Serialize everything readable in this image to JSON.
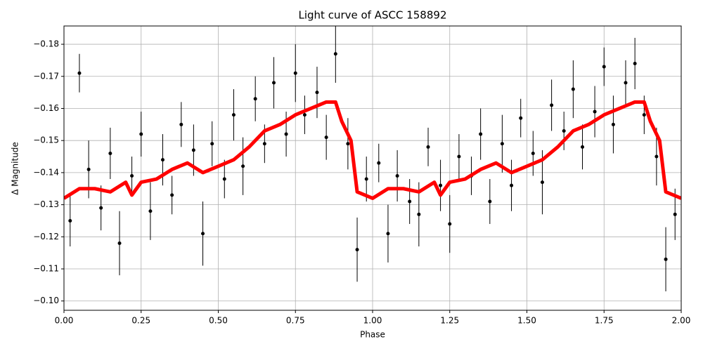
{
  "chart_data": {
    "type": "scatter",
    "title": "Light curve of ASCC 158892",
    "xlabel": "Phase",
    "ylabel": "Δ Magnitude",
    "xlim": [
      0,
      2
    ],
    "ylim": [
      -0.0971,
      -0.1857
    ],
    "xticks": [
      {
        "value": 0,
        "label": "0.00"
      },
      {
        "value": 0.25,
        "label": "0.25"
      },
      {
        "value": 0.5,
        "label": "0.50"
      },
      {
        "value": 0.75,
        "label": "0.75"
      },
      {
        "value": 1,
        "label": "1.00"
      },
      {
        "value": 1.25,
        "label": "1.25"
      },
      {
        "value": 1.5,
        "label": "1.50"
      },
      {
        "value": 1.75,
        "label": "1.75"
      },
      {
        "value": 2,
        "label": "2.00"
      }
    ],
    "yticks": [
      {
        "value": -0.18,
        "label": "−0.18"
      },
      {
        "value": -0.17,
        "label": "−0.17"
      },
      {
        "value": -0.16,
        "label": "−0.16"
      },
      {
        "value": -0.15,
        "label": "−0.15"
      },
      {
        "value": -0.14,
        "label": "−0.14"
      },
      {
        "value": -0.13,
        "label": "−0.13"
      },
      {
        "value": -0.12,
        "label": "−0.12"
      },
      {
        "value": -0.11,
        "label": "−0.11"
      },
      {
        "value": -0.1,
        "label": "−0.10"
      }
    ],
    "grid": true,
    "series": [
      {
        "kind": "errorbar",
        "color": "#000000",
        "x": [
          0.02,
          0.05,
          0.08,
          0.12,
          0.15,
          0.18,
          0.22,
          0.25,
          0.28,
          0.32,
          0.35,
          0.38,
          0.42,
          0.45,
          0.48,
          0.52,
          0.55,
          0.58,
          0.62,
          0.65,
          0.68,
          0.72,
          0.75,
          0.78,
          0.82,
          0.85,
          0.88,
          0.92,
          0.95,
          0.98,
          1.02,
          1.05,
          1.08,
          1.12,
          1.15,
          1.18,
          1.22,
          1.25,
          1.28,
          1.32,
          1.35,
          1.38,
          1.42,
          1.45,
          1.48,
          1.52,
          1.55,
          1.58,
          1.62,
          1.65,
          1.68,
          1.72,
          1.75,
          1.78,
          1.82,
          1.85,
          1.88,
          1.92,
          1.95,
          1.98
        ],
        "values": [
          -0.125,
          -0.171,
          -0.141,
          -0.129,
          -0.146,
          -0.118,
          -0.139,
          -0.152,
          -0.128,
          -0.144,
          -0.133,
          -0.155,
          -0.147,
          -0.121,
          -0.149,
          -0.138,
          -0.158,
          -0.142,
          -0.163,
          -0.149,
          -0.168,
          -0.152,
          -0.171,
          -0.158,
          -0.165,
          -0.151,
          -0.177,
          -0.149,
          -0.116,
          -0.138,
          -0.143,
          -0.121,
          -0.139,
          -0.131,
          -0.127,
          -0.148,
          -0.136,
          -0.124,
          -0.145,
          -0.139,
          -0.152,
          -0.131,
          -0.149,
          -0.136,
          -0.157,
          -0.146,
          -0.137,
          -0.161,
          -0.153,
          -0.166,
          -0.148,
          -0.159,
          -0.173,
          -0.155,
          -0.168,
          -0.174,
          -0.158,
          -0.145,
          -0.113,
          -0.127
        ],
        "errors": [
          0.008,
          0.006,
          0.009,
          0.007,
          0.008,
          0.01,
          0.006,
          0.007,
          0.009,
          0.008,
          0.006,
          0.007,
          0.008,
          0.01,
          0.007,
          0.006,
          0.008,
          0.009,
          0.007,
          0.006,
          0.008,
          0.007,
          0.009,
          0.006,
          0.008,
          0.007,
          0.009,
          0.008,
          0.01,
          0.007,
          0.006,
          0.009,
          0.008,
          0.007,
          0.01,
          0.006,
          0.008,
          0.009,
          0.007,
          0.006,
          0.008,
          0.007,
          0.009,
          0.008,
          0.006,
          0.007,
          0.01,
          0.008,
          0.006,
          0.009,
          0.007,
          0.008,
          0.006,
          0.009,
          0.007,
          0.008,
          0.006,
          0.009,
          0.01,
          0.008
        ]
      },
      {
        "kind": "line",
        "color": "#ff0000",
        "x": [
          0,
          0.05,
          0.1,
          0.15,
          0.2,
          0.22,
          0.25,
          0.3,
          0.35,
          0.4,
          0.45,
          0.5,
          0.55,
          0.6,
          0.65,
          0.7,
          0.75,
          0.8,
          0.85,
          0.88,
          0.9,
          0.93,
          0.95,
          1,
          1.05,
          1.1,
          1.15,
          1.2,
          1.22,
          1.25,
          1.3,
          1.35,
          1.4,
          1.45,
          1.5,
          1.55,
          1.6,
          1.65,
          1.7,
          1.75,
          1.8,
          1.85,
          1.88,
          1.9,
          1.93,
          1.95,
          2
        ],
        "values": [
          -0.132,
          -0.135,
          -0.135,
          -0.134,
          -0.137,
          -0.133,
          -0.137,
          -0.138,
          -0.141,
          -0.143,
          -0.14,
          -0.142,
          -0.144,
          -0.148,
          -0.153,
          -0.155,
          -0.158,
          -0.16,
          -0.162,
          -0.162,
          -0.156,
          -0.15,
          -0.134,
          -0.132,
          -0.135,
          -0.135,
          -0.134,
          -0.137,
          -0.133,
          -0.137,
          -0.138,
          -0.141,
          -0.143,
          -0.14,
          -0.142,
          -0.144,
          -0.148,
          -0.153,
          -0.155,
          -0.158,
          -0.16,
          -0.162,
          -0.162,
          -0.156,
          -0.15,
          -0.134,
          -0.132
        ]
      }
    ]
  }
}
